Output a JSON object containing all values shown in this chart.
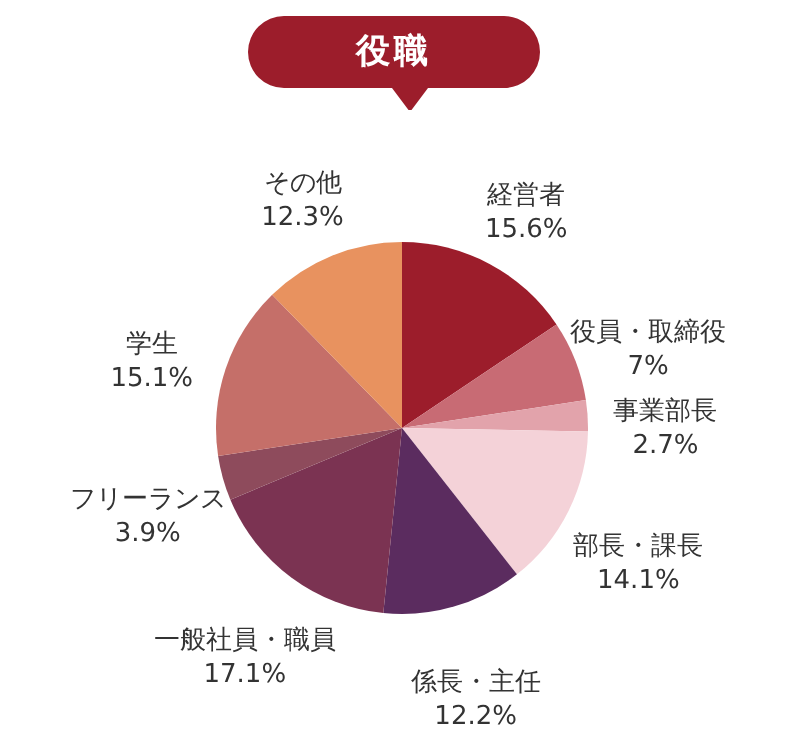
{
  "chart_data": {
    "type": "pie",
    "title": "役職",
    "categories": [
      "経営者",
      "役員・取締役",
      "事業部長",
      "部長・課長",
      "係長・主任",
      "一般社員・職員",
      "フリーランス",
      "学生",
      "その他"
    ],
    "values": [
      15.6,
      7,
      2.7,
      14.1,
      12.2,
      17.1,
      3.9,
      15.1,
      12.3
    ],
    "value_labels": [
      "15.6%",
      "7%",
      "2.7%",
      "14.1%",
      "12.2%",
      "17.1%",
      "3.9%",
      "15.1%",
      "12.3%"
    ],
    "colors": [
      "#9c1d2b",
      "#c86b74",
      "#e2a3ab",
      "#f4d2d8",
      "#5b2c5f",
      "#7b3352",
      "#8e4b5c",
      "#c56f69",
      "#e8925f"
    ]
  }
}
